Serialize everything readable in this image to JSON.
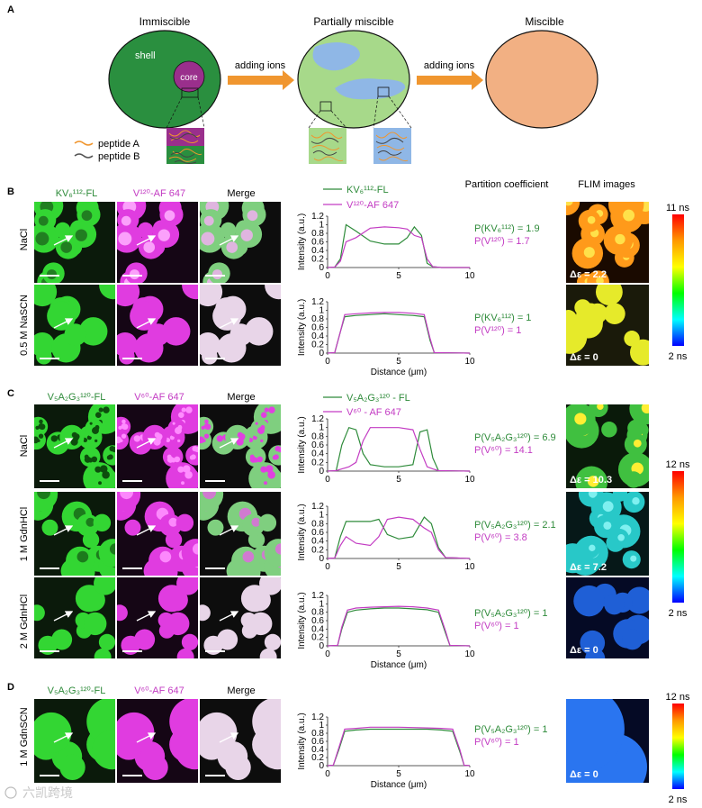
{
  "colors": {
    "green": "#2e8b3a",
    "magenta": "#c33cc3",
    "bright_green": "#2ecc2e",
    "bright_magenta": "#e03ce0",
    "shell_green": "#2a8f3f",
    "core_purple": "#9a2f8c",
    "partial_green": "#a7d98a",
    "partial_blue": "#8fb7e6",
    "miscible_orange": "#f2b083",
    "arrow_orange": "#f0962f"
  },
  "panelA": {
    "letter": "A",
    "titles": [
      "Immiscible",
      "Partially miscible",
      "Miscible"
    ],
    "shell": "shell",
    "core": "core",
    "arrow_label": "adding ions",
    "legend": [
      {
        "label": "peptide A",
        "color": "#f0962f"
      },
      {
        "label": "peptide B",
        "color": "#555555"
      }
    ]
  },
  "panelB": {
    "letter": "B",
    "col_labels": [
      "KV₆¹¹²-FL",
      "V¹²⁰-AF 647",
      "Merge"
    ],
    "rows": [
      "NaCl",
      "0.5 M NaSCN"
    ],
    "legend": [
      "KV₆¹¹²-FL",
      "V¹²⁰-AF 647"
    ],
    "pc": [
      [
        "P(KV₆¹¹²) = 1.9",
        "P(V¹²⁰) = 1.7"
      ],
      [
        "P(KV₆¹¹²) = 1",
        "P(V¹²⁰) = 1"
      ]
    ],
    "delta": [
      "Δε = 2.2",
      "Δε = 0"
    ]
  },
  "panelC": {
    "letter": "C",
    "col_labels": [
      "V₅A₂G₃¹²⁰-FL",
      "V⁶⁰-AF 647",
      "Merge"
    ],
    "rows": [
      "NaCl",
      "1 M GdnHCl",
      "2 M GdnHCl"
    ],
    "legend": [
      "V₅A₂G₃¹²⁰ - FL",
      "V⁶⁰ - AF 647"
    ],
    "pc": [
      [
        "P(V₅A₂G₃¹²⁰) = 6.9",
        "P(V⁶⁰) = 14.1"
      ],
      [
        "P(V₅A₂G₃¹²⁰) = 2.1",
        "P(V⁶⁰) = 3.8"
      ],
      [
        "P(V₅A₂G₃¹²⁰) = 1",
        "P(V⁶⁰) = 1"
      ]
    ],
    "delta": [
      "Δε = 10.3",
      "Δε = 7.2",
      "Δε = 0"
    ]
  },
  "panelD": {
    "letter": "D",
    "col_labels": [
      "V₅A₂G₃¹²⁰-FL",
      "V⁶⁰-AF 647",
      "Merge"
    ],
    "rows": [
      "1 M GdnSCN"
    ],
    "pc": [
      [
        "P(V₅A₂G₃¹²⁰) = 1",
        "P(V⁶⁰) = 1"
      ]
    ],
    "delta": [
      "Δε = 0"
    ]
  },
  "headers": {
    "partition": "Partition coefficient",
    "flim": "FLIM images"
  },
  "axes": {
    "ylabel": "Intensity (a.u.)",
    "xlabel": "Distance (μm)",
    "yticks": [
      "0",
      "0.2",
      "0.4",
      "0.6",
      "0.8",
      "1",
      "1.2"
    ],
    "xticks": [
      "0",
      "5",
      "10"
    ]
  },
  "colorbars": [
    {
      "top": "11 ns",
      "bottom": "2 ns"
    },
    {
      "top": "12 ns",
      "bottom": "2 ns"
    },
    {
      "top": "12 ns",
      "bottom": "2 ns"
    }
  ],
  "watermark": "六凯跨境",
  "chart_data": [
    {
      "type": "line",
      "panel": "B NaCl",
      "xlim": [
        0,
        10
      ],
      "ylim": [
        0,
        1.2
      ],
      "ylabel": "Intensity (a.u.)",
      "x": [
        0,
        0.5,
        0.9,
        1.3,
        2,
        3,
        4,
        5,
        5.6,
        6.1,
        6.6,
        7,
        7.4,
        8,
        10
      ],
      "series": [
        {
          "name": "KV₆¹¹²-FL",
          "values": [
            0,
            0.01,
            0.2,
            1.0,
            0.85,
            0.62,
            0.55,
            0.55,
            0.7,
            0.95,
            0.75,
            0.1,
            0.02,
            0,
            0
          ]
        },
        {
          "name": "V¹²⁰-AF 647",
          "values": [
            0,
            0.01,
            0.15,
            0.6,
            0.7,
            0.92,
            0.95,
            0.93,
            0.9,
            0.75,
            0.7,
            0.2,
            0.02,
            0,
            0
          ]
        }
      ]
    },
    {
      "type": "line",
      "panel": "B 0.5 M NaSCN",
      "xlim": [
        0,
        10
      ],
      "ylim": [
        0,
        1.2
      ],
      "ylabel": "Intensity (a.u.)",
      "xlabel": "Distance (μm)",
      "x": [
        0,
        0.5,
        0.9,
        1.2,
        2,
        3,
        4,
        5,
        6,
        6.8,
        7.2,
        7.5,
        10
      ],
      "series": [
        {
          "name": "KV₆¹¹²-FL",
          "values": [
            0,
            0.01,
            0.5,
            0.85,
            0.88,
            0.9,
            0.92,
            0.9,
            0.88,
            0.85,
            0.3,
            0.01,
            0
          ]
        },
        {
          "name": "V¹²⁰-AF 647",
          "values": [
            0,
            0.01,
            0.5,
            0.9,
            0.92,
            0.94,
            0.95,
            0.95,
            0.93,
            0.9,
            0.35,
            0.01,
            0
          ]
        }
      ]
    },
    {
      "type": "line",
      "panel": "C NaCl",
      "xlim": [
        0,
        10
      ],
      "ylim": [
        0,
        1.2
      ],
      "ylabel": "Intensity (a.u.)",
      "x": [
        0,
        0.6,
        1,
        1.5,
        2,
        2.5,
        3,
        4,
        5,
        6,
        6.5,
        7,
        7.4,
        7.8,
        10
      ],
      "series": [
        {
          "name": "V₅A₂G₃¹²⁰ - FL",
          "values": [
            0,
            0.01,
            0.6,
            1.0,
            0.95,
            0.4,
            0.15,
            0.1,
            0.1,
            0.15,
            0.9,
            0.95,
            0.3,
            0.01,
            0
          ]
        },
        {
          "name": "V⁶⁰ - AF 647",
          "values": [
            0,
            0.01,
            0.05,
            0.1,
            0.2,
            0.7,
            1.0,
            1.0,
            1.0,
            0.95,
            0.5,
            0.1,
            0.05,
            0.01,
            0
          ]
        }
      ]
    },
    {
      "type": "line",
      "panel": "C 1 M GdnHCl",
      "xlim": [
        0,
        10
      ],
      "ylim": [
        0,
        1.2
      ],
      "ylabel": "Intensity (a.u.)",
      "x": [
        0,
        0.5,
        0.9,
        1.3,
        2,
        3,
        3.6,
        4.2,
        5,
        6,
        6.8,
        7.3,
        7.8,
        8.3,
        10
      ],
      "series": [
        {
          "name": "V₅A₂G₃¹²⁰ - FL",
          "values": [
            0,
            0.01,
            0.5,
            0.85,
            0.85,
            0.85,
            0.9,
            0.55,
            0.45,
            0.5,
            0.95,
            0.8,
            0.25,
            0.02,
            0
          ]
        },
        {
          "name": "V⁶⁰ - AF 647",
          "values": [
            0,
            0.01,
            0.3,
            0.5,
            0.35,
            0.3,
            0.5,
            0.9,
            0.95,
            0.9,
            0.7,
            0.6,
            0.2,
            0.02,
            0
          ]
        }
      ]
    },
    {
      "type": "line",
      "panel": "C 2 M GdnHCl",
      "xlim": [
        0,
        10
      ],
      "ylim": [
        0,
        1.2
      ],
      "ylabel": "Intensity (a.u.)",
      "xlabel": "Distance (μm)",
      "x": [
        0,
        0.7,
        1,
        1.4,
        2,
        3,
        4,
        5,
        6,
        7,
        7.8,
        8.3,
        8.6,
        10
      ],
      "series": [
        {
          "name": "V₅A₂G₃¹²⁰ - FL",
          "values": [
            0,
            0.01,
            0.4,
            0.8,
            0.85,
            0.88,
            0.9,
            0.9,
            0.88,
            0.86,
            0.8,
            0.3,
            0.01,
            0
          ]
        },
        {
          "name": "V⁶⁰ - AF 647",
          "values": [
            0,
            0.01,
            0.45,
            0.85,
            0.9,
            0.92,
            0.93,
            0.94,
            0.93,
            0.9,
            0.85,
            0.35,
            0.01,
            0
          ]
        }
      ]
    },
    {
      "type": "line",
      "panel": "D 1 M GdnSCN",
      "xlim": [
        0,
        10
      ],
      "ylim": [
        0,
        1.2
      ],
      "ylabel": "Intensity (a.u.)",
      "xlabel": "Distance (μm)",
      "x": [
        0,
        0.4,
        0.8,
        1.2,
        2,
        3,
        4,
        5,
        6,
        7,
        8,
        8.8,
        9.3,
        9.6,
        10
      ],
      "series": [
        {
          "name": "V₅A₂G₃¹²⁰ - FL",
          "values": [
            0,
            0.01,
            0.4,
            0.85,
            0.88,
            0.9,
            0.9,
            0.9,
            0.9,
            0.9,
            0.88,
            0.85,
            0.35,
            0.01,
            0
          ]
        },
        {
          "name": "V⁶⁰ - AF 647",
          "values": [
            0,
            0.01,
            0.45,
            0.9,
            0.92,
            0.95,
            0.95,
            0.95,
            0.94,
            0.93,
            0.92,
            0.9,
            0.4,
            0.01,
            0
          ]
        }
      ]
    }
  ]
}
